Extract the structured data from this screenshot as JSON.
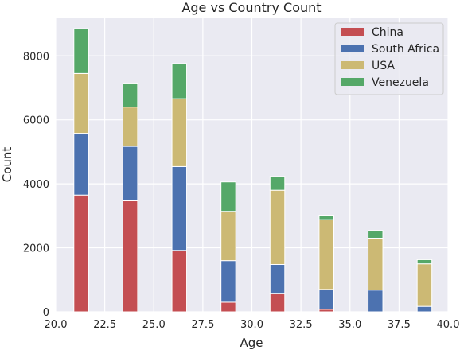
{
  "chart_data": {
    "type": "bar",
    "stacked": true,
    "title": "Age vs Country Count",
    "xlabel": "Age",
    "ylabel": "Count",
    "xlim": [
      20.0,
      40.0
    ],
    "ylim": [
      0,
      9200
    ],
    "xticks": [
      "20.0",
      "22.5",
      "25.0",
      "27.5",
      "30.0",
      "32.5",
      "35.0",
      "37.5",
      "40.0"
    ],
    "yticks": [
      "0",
      "2000",
      "4000",
      "6000",
      "8000"
    ],
    "grid": true,
    "background": "#eaeaf2",
    "legend_position": "top-right",
    "bins": [
      {
        "center": 21.3,
        "width": 0.75
      },
      {
        "center": 23.8,
        "width": 0.75
      },
      {
        "center": 26.3,
        "width": 0.75
      },
      {
        "center": 28.8,
        "width": 0.75
      },
      {
        "center": 31.3,
        "width": 0.75
      },
      {
        "center": 33.8,
        "width": 0.75
      },
      {
        "center": 36.3,
        "width": 0.75
      },
      {
        "center": 38.8,
        "width": 0.75
      }
    ],
    "series": [
      {
        "name": "China",
        "color": "#c44e52",
        "values": [
          3650,
          3470,
          1920,
          300,
          580,
          80,
          0,
          0
        ]
      },
      {
        "name": "South Africa",
        "color": "#4c72b0",
        "values": [
          1930,
          1700,
          2620,
          1300,
          900,
          620,
          680,
          170
        ]
      },
      {
        "name": "USA",
        "color": "#ccb974",
        "values": [
          1870,
          1230,
          2120,
          1540,
          2320,
          2180,
          1620,
          1330
        ]
      },
      {
        "name": "Venezuela",
        "color": "#55a868",
        "values": [
          1400,
          750,
          1100,
          920,
          430,
          140,
          240,
          130
        ]
      }
    ]
  }
}
